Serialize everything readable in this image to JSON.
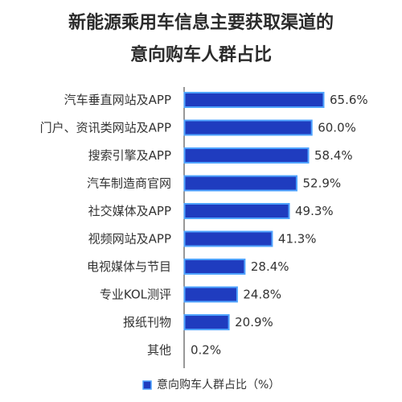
{
  "chart_data": {
    "type": "bar",
    "orientation": "horizontal",
    "title": "新能源乘用车信息主要获取渠道的",
    "subtitle": "意向购车人群占比",
    "categories": [
      "汽车垂直网站及APP",
      "门户、资讯类网站及APP",
      "搜索引擎及APP",
      "汽车制造商官网",
      "社交媒体及APP",
      "视频网站及APP",
      "电视媒体与节目",
      "专业KOL测评",
      "报纸刊物",
      "其他"
    ],
    "values": [
      65.6,
      60.0,
      58.4,
      52.9,
      49.3,
      41.3,
      28.4,
      24.8,
      20.9,
      0.2
    ],
    "value_labels": [
      "65.6%",
      "60.0%",
      "58.4%",
      "52.9%",
      "49.3%",
      "41.3%",
      "28.4%",
      "24.8%",
      "20.9%",
      "0.2%"
    ],
    "series": [
      {
        "name": "意向购车人群占比（%）",
        "values": [
          65.6,
          60.0,
          58.4,
          52.9,
          49.3,
          41.3,
          28.4,
          24.8,
          20.9,
          0.2
        ]
      }
    ],
    "xlim": [
      0,
      70
    ],
    "legend_position": "bottom",
    "colors": {
      "bar_fill": "#1f3cbf",
      "bar_stroke": "#4fa3ff",
      "axis": "#555555"
    }
  }
}
